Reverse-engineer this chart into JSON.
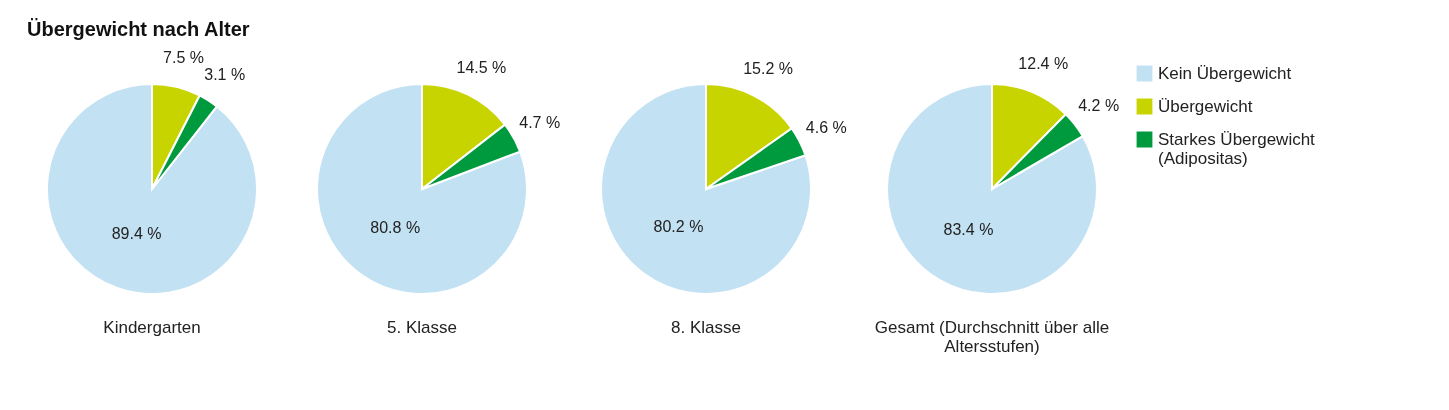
{
  "chart_data": [
    {
      "type": "pie",
      "title": "Übergewicht nach Alter",
      "xlabel": "Kindergarten",
      "categories": [
        null,
        null,
        null
      ],
      "values": [
        89.4,
        7.5,
        3.1
      ],
      "value_labels": [
        "89.4 %",
        "7.5 %",
        "3.1 %"
      ],
      "colors": [
        "#c2e1f3",
        "#c8d400",
        "#009a3e"
      ]
    },
    {
      "type": "pie",
      "xlabel": "5. Klasse",
      "categories": [
        null,
        null,
        null
      ],
      "values": [
        80.8,
        14.5,
        4.7
      ],
      "value_labels": [
        "80.8 %",
        "14.5 %",
        "4.7 %"
      ],
      "colors": [
        "#c2e1f3",
        "#c8d400",
        "#009a3e"
      ]
    },
    {
      "type": "pie",
      "xlabel": "8. Klasse",
      "categories": [
        null,
        null,
        null
      ],
      "values": [
        80.2,
        15.2,
        4.6
      ],
      "value_labels": [
        "80.2 %",
        "15.2 %",
        "4.6 %"
      ],
      "colors": [
        "#c2e1f3",
        "#c8d400",
        "#009a3e"
      ]
    },
    {
      "type": "pie",
      "xlabel": "Gesamt (Durchschnitt über alle Altersstufen)",
      "categories": [
        "Kein Übergewicht",
        "Übergewicht",
        "Starkes Übergewicht (Adipositas)"
      ],
      "values": [
        83.4,
        12.4,
        4.2
      ],
      "value_labels": [
        "83.4 %",
        "12.4 %",
        "4.2 %"
      ],
      "colors": [
        "#c2e1f3",
        "#c8d400",
        "#009a3e"
      ],
      "legend": "right"
    }
  ]
}
